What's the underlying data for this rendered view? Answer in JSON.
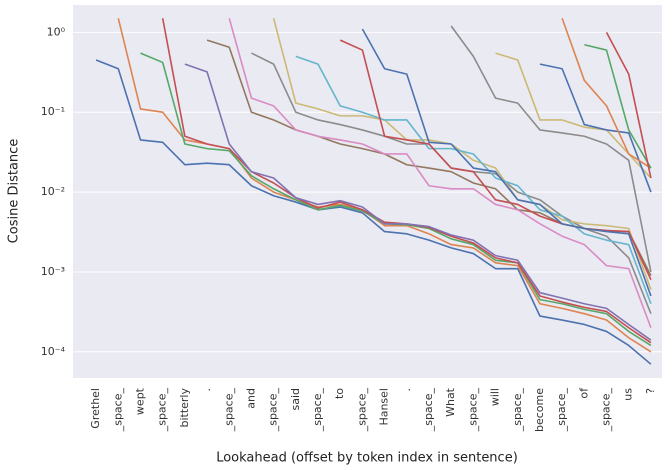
{
  "chart_data": {
    "type": "line",
    "y_label": "Cosine Distance",
    "x_label": "Lookahead (offset by token index in sentence)",
    "log_y": true,
    "grid": true,
    "ylim": [
      4.7e-05,
      2.2
    ],
    "yticks": [
      {
        "value": 1,
        "label": "10⁰"
      },
      {
        "value": 0.1,
        "label": "10⁻¹"
      },
      {
        "value": 0.01,
        "label": "10⁻²"
      },
      {
        "value": 0.001,
        "label": "10⁻³"
      },
      {
        "value": 0.0001,
        "label": "10⁻⁴"
      }
    ],
    "categories": [
      "Grethel",
      "_space_",
      "wept",
      "_space_",
      "bitterly",
      ".",
      "_space_",
      "and",
      "_space_",
      "said",
      "_space_",
      "to",
      "_space_",
      "Hansel",
      ".",
      "_space_",
      "What",
      "_space_",
      "will",
      "_space_",
      "become",
      "_space_",
      "of",
      "_space_",
      "us",
      "?"
    ],
    "series": [
      {
        "color": "#4c72b0",
        "values": [
          0.45,
          0.35,
          0.045,
          0.042,
          0.022,
          0.023,
          0.022,
          0.012,
          0.009,
          0.0075,
          0.006,
          0.0065,
          0.0055,
          0.0032,
          0.003,
          0.0025,
          0.002,
          0.0017,
          0.0011,
          0.0011,
          0.00028,
          0.00025,
          0.00022,
          0.00018,
          0.00012,
          7e-05
        ]
      },
      {
        "color": "#dd8452",
        "values": [
          null,
          1.5,
          0.11,
          0.1,
          0.045,
          0.04,
          0.035,
          0.015,
          0.01,
          0.008,
          0.0065,
          0.007,
          0.006,
          0.0038,
          0.0038,
          0.003,
          0.0022,
          0.002,
          0.0013,
          0.0012,
          0.0004,
          0.00035,
          0.0003,
          0.00025,
          0.00015,
          0.0001
        ]
      },
      {
        "color": "#55a868",
        "values": [
          null,
          null,
          0.55,
          0.42,
          0.04,
          0.035,
          0.033,
          0.016,
          0.011,
          0.008,
          0.006,
          0.0068,
          0.0058,
          0.004,
          0.0039,
          0.0035,
          0.0026,
          0.0022,
          0.0014,
          0.0013,
          0.00045,
          0.0004,
          0.00034,
          0.0003,
          0.00018,
          0.00012
        ]
      },
      {
        "color": "#c44e52",
        "values": [
          null,
          null,
          null,
          1.5,
          0.05,
          0.04,
          0.035,
          0.018,
          0.013,
          0.0085,
          0.0063,
          0.0075,
          0.006,
          0.0042,
          0.004,
          0.0036,
          0.0028,
          0.0023,
          0.0015,
          0.0013,
          0.0005,
          0.00042,
          0.00036,
          0.00032,
          0.0002,
          0.00013
        ]
      },
      {
        "color": "#8172b3",
        "values": [
          null,
          null,
          null,
          null,
          0.4,
          0.32,
          0.04,
          0.018,
          0.015,
          0.0085,
          0.007,
          0.0078,
          0.0065,
          0.004,
          0.004,
          0.0037,
          0.0029,
          0.0025,
          0.0016,
          0.0014,
          0.00055,
          0.00047,
          0.0004,
          0.00035,
          0.00022,
          0.00014
        ]
      },
      {
        "color": "#937860",
        "values": [
          null,
          null,
          null,
          null,
          null,
          0.8,
          0.65,
          0.1,
          0.08,
          0.06,
          0.05,
          0.04,
          0.035,
          0.03,
          0.022,
          0.02,
          0.018,
          0.013,
          0.011,
          0.006,
          0.0055,
          0.004,
          0.0035,
          0.0033,
          0.0032,
          0.0009
        ]
      },
      {
        "color": "#da8bc3",
        "values": [
          null,
          null,
          null,
          null,
          null,
          null,
          1.5,
          0.15,
          0.12,
          0.06,
          0.05,
          0.045,
          0.04,
          0.03,
          0.03,
          0.012,
          0.011,
          0.011,
          0.007,
          0.006,
          0.004,
          0.0028,
          0.0022,
          0.0012,
          0.0011,
          0.0002
        ]
      },
      {
        "color": "#8c8c8c",
        "values": [
          null,
          null,
          null,
          null,
          null,
          null,
          null,
          0.55,
          0.4,
          0.1,
          0.08,
          0.07,
          0.06,
          0.05,
          0.04,
          0.04,
          0.02,
          0.018,
          0.017,
          0.01,
          0.008,
          0.005,
          0.0035,
          0.0028,
          0.0015,
          0.0003
        ]
      },
      {
        "color": "#ccb974",
        "values": [
          null,
          null,
          null,
          null,
          null,
          null,
          null,
          null,
          1.5,
          0.13,
          0.11,
          0.09,
          0.09,
          0.08,
          0.045,
          0.045,
          0.04,
          0.025,
          0.02,
          0.008,
          0.007,
          0.0045,
          0.004,
          0.0038,
          0.0035,
          0.0006
        ]
      },
      {
        "color": "#64b5cd",
        "values": [
          null,
          null,
          null,
          null,
          null,
          null,
          null,
          null,
          null,
          0.5,
          0.4,
          0.12,
          0.1,
          0.08,
          0.08,
          0.035,
          0.035,
          0.03,
          0.015,
          0.012,
          0.006,
          0.005,
          0.003,
          0.0025,
          0.0022,
          0.0004
        ]
      },
      {
        "color": "#c44e52",
        "values": [
          null,
          null,
          null,
          null,
          null,
          null,
          null,
          null,
          null,
          null,
          null,
          0.8,
          0.6,
          0.05,
          0.045,
          0.04,
          0.02,
          0.018,
          0.008,
          0.007,
          0.005,
          0.004,
          0.0035,
          0.0033,
          0.0032,
          0.0008
        ]
      },
      {
        "color": "#4c72b0",
        "values": [
          null,
          null,
          null,
          null,
          null,
          null,
          null,
          null,
          null,
          null,
          null,
          null,
          1.1,
          0.35,
          0.3,
          0.042,
          0.04,
          0.02,
          0.018,
          0.008,
          0.007,
          0.004,
          0.0035,
          0.0032,
          0.003,
          0.0005
        ]
      },
      {
        "color": "#8c8c8c",
        "values": [
          null,
          null,
          null,
          null,
          null,
          null,
          null,
          null,
          null,
          null,
          null,
          null,
          null,
          null,
          null,
          null,
          1.2,
          0.5,
          0.15,
          0.13,
          0.06,
          0.055,
          0.05,
          0.04,
          0.025,
          0.001
        ]
      },
      {
        "color": "#ccb974",
        "values": [
          null,
          null,
          null,
          null,
          null,
          null,
          null,
          null,
          null,
          null,
          null,
          null,
          null,
          null,
          null,
          null,
          null,
          null,
          0.55,
          0.45,
          0.08,
          0.08,
          0.065,
          0.06,
          0.03,
          0.015
        ]
      },
      {
        "color": "#4c72b0",
        "values": [
          null,
          null,
          null,
          null,
          null,
          null,
          null,
          null,
          null,
          null,
          null,
          null,
          null,
          null,
          null,
          null,
          null,
          null,
          null,
          null,
          0.4,
          0.35,
          0.07,
          0.06,
          0.055,
          0.01
        ]
      },
      {
        "color": "#dd8452",
        "values": [
          null,
          null,
          null,
          null,
          null,
          null,
          null,
          null,
          null,
          null,
          null,
          null,
          null,
          null,
          null,
          null,
          null,
          null,
          null,
          null,
          null,
          1.5,
          0.25,
          0.12,
          0.03,
          0.02
        ]
      },
      {
        "color": "#55a868",
        "values": [
          null,
          null,
          null,
          null,
          null,
          null,
          null,
          null,
          null,
          null,
          null,
          null,
          null,
          null,
          null,
          null,
          null,
          null,
          null,
          null,
          null,
          null,
          0.7,
          0.6,
          0.06,
          0.02
        ]
      },
      {
        "color": "#c44e52",
        "values": [
          null,
          null,
          null,
          null,
          null,
          null,
          null,
          null,
          null,
          null,
          null,
          null,
          null,
          null,
          null,
          null,
          null,
          null,
          null,
          null,
          null,
          null,
          null,
          1.0,
          0.3,
          0.015
        ]
      }
    ]
  }
}
